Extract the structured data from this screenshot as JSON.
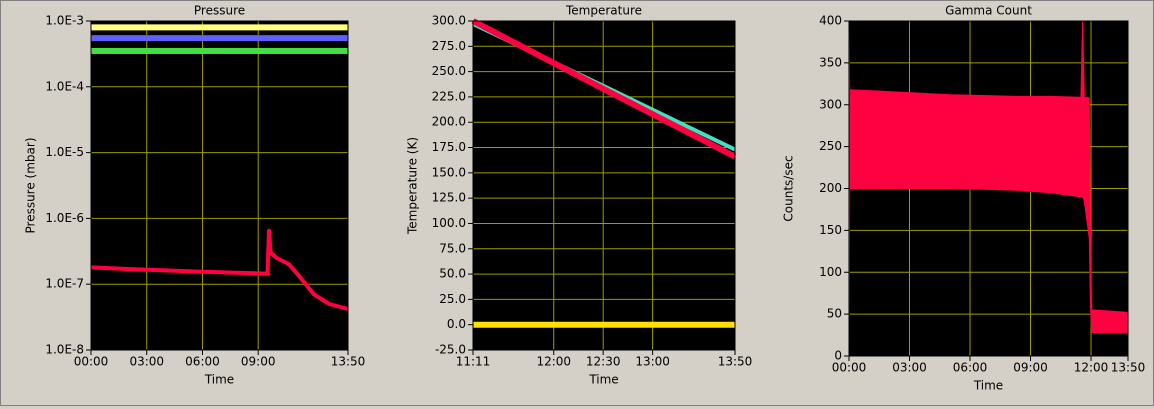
{
  "chart_data": [
    {
      "type": "line",
      "title": "Pressure",
      "x_label": "Time",
      "y_label": "Pressure (mbar)",
      "log_y": true,
      "grid": true,
      "xlim": [
        0,
        830
      ],
      "ylim": [
        1e-08,
        0.001
      ],
      "xticks": [
        {
          "value": 0,
          "label": "00:00"
        },
        {
          "value": 180,
          "label": "03:00"
        },
        {
          "value": 360,
          "label": "06:00"
        },
        {
          "value": 540,
          "label": "09:00"
        },
        {
          "value": 830,
          "label": "13:50"
        }
      ],
      "yticks": [
        {
          "value": 1e-08,
          "label": "1.0E-8"
        },
        {
          "value": 1e-07,
          "label": "1.0E-7"
        },
        {
          "value": 1e-06,
          "label": "1.0E-6"
        },
        {
          "value": 1e-05,
          "label": "1.0E-5"
        },
        {
          "value": 0.0001,
          "label": "1.0E-4"
        },
        {
          "value": 0.001,
          "label": "1.0E-3"
        }
      ],
      "x": [
        0,
        120,
        360,
        570,
        575,
        580,
        600,
        640,
        680,
        720,
        770,
        830
      ],
      "series": [
        {
          "color": "#ff0040",
          "values": [
            1.8e-07,
            1.7e-07,
            1.55e-07,
            1.45e-07,
            6.5e-07,
            3e-07,
            2.5e-07,
            2e-07,
            1.2e-07,
            7e-08,
            5e-08,
            4.2e-08
          ]
        },
        {
          "color": "#ffff80",
          "values": [
            0.0008,
            0.0008,
            0.0008,
            0.0008,
            0.0008,
            0.0008,
            0.0008,
            0.0008,
            0.0008,
            0.0008,
            0.0008,
            0.0008
          ]
        },
        {
          "color": "#6060ff",
          "values": [
            0.00055,
            0.00055,
            0.00055,
            0.00055,
            0.00055,
            0.00055,
            0.00055,
            0.00055,
            0.00055,
            0.00055,
            0.00055,
            0.00055
          ]
        },
        {
          "color": "#40e040",
          "values": [
            0.00035,
            0.00035,
            0.00035,
            0.00035,
            0.00035,
            0.00035,
            0.00035,
            0.00035,
            0.00035,
            0.00035,
            0.00035,
            0.00035
          ]
        }
      ]
    },
    {
      "type": "line",
      "title": "Temperature",
      "x_label": "Time",
      "y_label": "Temperature (K)",
      "grid": true,
      "xlim": [
        671,
        830
      ],
      "ylim": [
        -25,
        300
      ],
      "xticks": [
        {
          "value": 671,
          "label": "11:11"
        },
        {
          "value": 720,
          "label": "12:00"
        },
        {
          "value": 750,
          "label": "12:30"
        },
        {
          "value": 780,
          "label": "13:00"
        },
        {
          "value": 830,
          "label": "13:50"
        }
      ],
      "yticks": [
        {
          "value": -25,
          "label": "-25.0"
        },
        {
          "value": 0,
          "label": "0.0"
        },
        {
          "value": 25,
          "label": "25.0"
        },
        {
          "value": 50,
          "label": "50.0"
        },
        {
          "value": 75,
          "label": "75.0"
        },
        {
          "value": 100,
          "label": "100.0"
        },
        {
          "value": 125,
          "label": "125.0"
        },
        {
          "value": 150,
          "label": "150.0"
        },
        {
          "value": 175,
          "label": "175.0"
        },
        {
          "value": 200,
          "label": "200.0"
        },
        {
          "value": 225,
          "label": "225.0"
        },
        {
          "value": 250,
          "label": "250.0"
        },
        {
          "value": 275,
          "label": "275.0"
        },
        {
          "value": 300,
          "label": "300.0"
        }
      ],
      "x": [
        671,
        750,
        830
      ],
      "series": [
        {
          "color": "#40e0c0",
          "values": [
            297,
            236,
            173
          ]
        },
        {
          "color": "#ff0040",
          "values": [
            300,
            233,
            166
          ]
        },
        {
          "color": "#ffe000",
          "values": [
            0,
            0,
            0
          ]
        }
      ]
    },
    {
      "type": "band",
      "title": "Gamma Count",
      "x_label": "Time",
      "y_label": "Counts/sec",
      "grid": true,
      "color": "#ff0040",
      "xlim": [
        0,
        830
      ],
      "ylim": [
        0,
        400
      ],
      "xticks": [
        {
          "value": 0,
          "label": "00:00"
        },
        {
          "value": 180,
          "label": "03:00"
        },
        {
          "value": 360,
          "label": "06:00"
        },
        {
          "value": 540,
          "label": "09:00"
        },
        {
          "value": 720,
          "label": "12:00"
        },
        {
          "value": 830,
          "label": "13:50"
        }
      ],
      "yticks": [
        0,
        50,
        100,
        150,
        200,
        250,
        300,
        350,
        400
      ],
      "x": [
        0,
        2,
        100,
        200,
        300,
        400,
        500,
        600,
        690,
        695,
        700,
        715,
        718,
        722,
        830
      ],
      "upper": [
        400,
        318,
        316,
        314,
        312,
        311,
        310,
        310,
        309,
        400,
        309,
        308,
        150,
        55,
        52
      ],
      "lower": [
        0,
        200,
        200,
        200,
        200,
        199,
        198,
        195,
        190,
        190,
        185,
        140,
        60,
        28,
        28
      ]
    }
  ]
}
